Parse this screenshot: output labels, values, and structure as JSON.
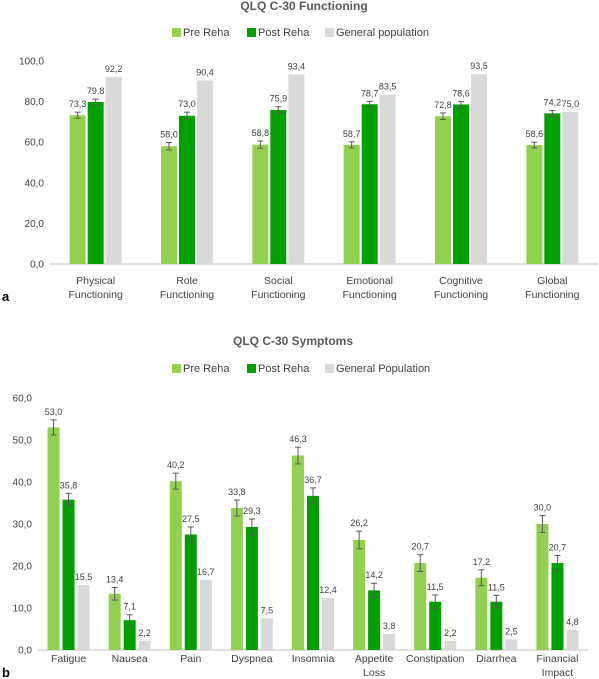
{
  "colors": {
    "pre": "#92d050",
    "post": "#00a000",
    "general": "#d9d9d9",
    "axis": "#bfbfbf",
    "text": "#404040",
    "errbar": "#595959"
  },
  "chart_data": [
    {
      "type": "bar",
      "panel_label": "a",
      "title": "QLQ C-30 Functioning",
      "xlabel": "",
      "ylabel": "",
      "ylim": [
        0,
        100
      ],
      "yticks": [
        "0,0",
        "20,0",
        "40,0",
        "60,0",
        "80,0",
        "100,0"
      ],
      "legend": {
        "position": "top-center"
      },
      "grid": false,
      "categories": [
        [
          "Physical",
          "Functioning"
        ],
        [
          "Role",
          "Functioning"
        ],
        [
          "Social",
          "Functioning"
        ],
        [
          "Emotional",
          "Functioning"
        ],
        [
          "Cognitive",
          "Functioning"
        ],
        [
          "Global",
          "Functioning"
        ]
      ],
      "series": [
        {
          "name": "Pre Reha",
          "color_key": "pre",
          "values": [
            73.3,
            58.0,
            58.8,
            58.7,
            72.8,
            58.6
          ],
          "labels": [
            "73,3",
            "58,0",
            "58,8",
            "58,7",
            "72,8",
            "58,6"
          ],
          "error": [
            1.5,
            1.8,
            1.8,
            1.5,
            1.6,
            1.4
          ]
        },
        {
          "name": "Post Reha",
          "color_key": "post",
          "values": [
            79.8,
            73.0,
            75.9,
            78.7,
            78.6,
            74.2
          ],
          "labels": [
            "79,8",
            "73,0",
            "75,9",
            "78,7",
            "78,6",
            "74,2"
          ],
          "error": [
            1.4,
            1.8,
            1.6,
            1.4,
            1.4,
            1.4
          ]
        },
        {
          "name": "General population",
          "color_key": "general",
          "values": [
            92.2,
            90.4,
            93.4,
            83.5,
            93.5,
            75.0
          ],
          "labels": [
            "92,2",
            "90,4",
            "93,4",
            "83,5",
            "93,5",
            "75,0"
          ]
        }
      ]
    },
    {
      "type": "bar",
      "panel_label": "b",
      "title": "QLQ C-30 Symptoms",
      "xlabel": "",
      "ylabel": "",
      "ylim": [
        0,
        60
      ],
      "yticks": [
        "0,0",
        "10,0",
        "20,0",
        "30,0",
        "40,0",
        "50,0",
        "60,0"
      ],
      "legend": {
        "position": "top-center"
      },
      "grid": false,
      "categories": [
        [
          "Fatigue"
        ],
        [
          "Nausea"
        ],
        [
          "Pain"
        ],
        [
          "Dyspnea"
        ],
        [
          "Insomnia"
        ],
        [
          "Appetite",
          "Loss"
        ],
        [
          "Constipation"
        ],
        [
          "Diarrhea"
        ],
        [
          "Financial",
          "Impact"
        ]
      ],
      "series": [
        {
          "name": "Pre Reha",
          "color_key": "pre",
          "values": [
            53.0,
            13.4,
            40.2,
            33.8,
            46.3,
            26.2,
            20.7,
            17.2,
            30.0
          ],
          "labels": [
            "53,0",
            "13,4",
            "40,2",
            "33,8",
            "46,3",
            "26,2",
            "20,7",
            "17,2",
            "30,0"
          ],
          "error": [
            1.8,
            1.5,
            1.9,
            1.9,
            2.0,
            2.1,
            2.0,
            1.9,
            2.0
          ]
        },
        {
          "name": "Post Reha",
          "color_key": "post",
          "values": [
            35.8,
            7.1,
            27.5,
            29.3,
            36.7,
            14.2,
            11.5,
            11.5,
            20.7
          ],
          "labels": [
            "35,8",
            "7,1",
            "27,5",
            "29,3",
            "36,7",
            "14,2",
            "11,5",
            "11,5",
            "20,7"
          ],
          "error": [
            1.5,
            1.3,
            1.8,
            1.9,
            1.9,
            1.7,
            1.6,
            1.5,
            1.8
          ]
        },
        {
          "name": "General Population",
          "color_key": "general",
          "values": [
            15.5,
            2.2,
            16.7,
            7.5,
            12.4,
            3.8,
            2.2,
            2.5,
            4.8
          ],
          "labels": [
            "15,5",
            "2,2",
            "16,7",
            "7,5",
            "12,4",
            "3,8",
            "2,2",
            "2,5",
            "4,8"
          ]
        }
      ]
    }
  ]
}
